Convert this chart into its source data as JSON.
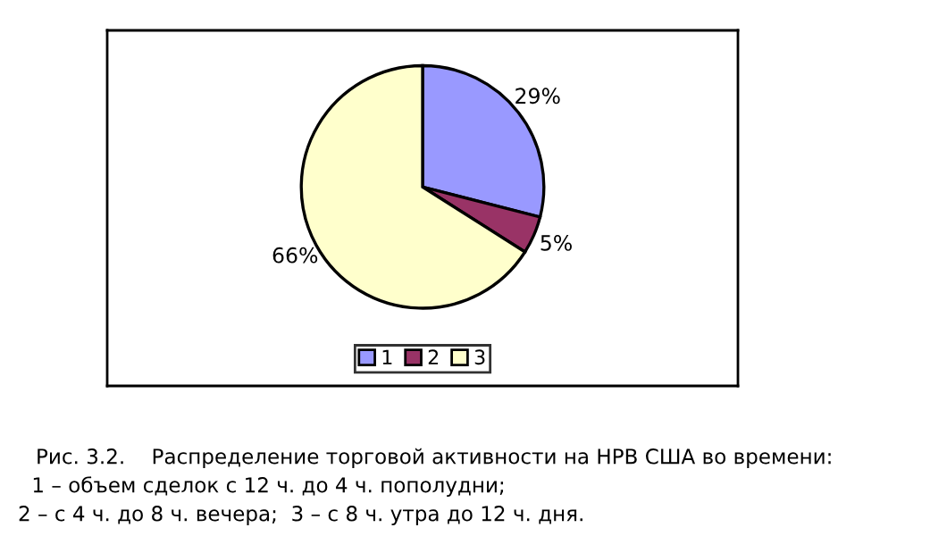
{
  "chart_data": {
    "type": "pie",
    "categories": [
      "1",
      "2",
      "3"
    ],
    "values": [
      29,
      5,
      66
    ],
    "colors": [
      "#9999ff",
      "#993366",
      "#ffffcc"
    ],
    "value_labels": [
      "29%",
      "5%",
      "66%"
    ],
    "legend": "bottom",
    "annotations": [
      "Рис. 3.2.    Распределение торговой активности на НРВ США во времени:",
      " 1 – объем сделок с 12 ч. до 4 ч. пополудни;",
      "2 – с 4 ч. до 8 ч. вечера;  3 – с 8 ч. утра до 12 ч. дня."
    ]
  }
}
